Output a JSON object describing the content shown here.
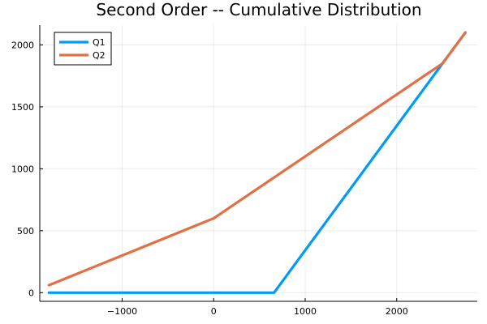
{
  "chart_data": {
    "type": "line",
    "title": "Second Order -- Cumulative Distribution",
    "xlabel": "",
    "ylabel": "",
    "xlim": [
      -1900,
      2880
    ],
    "ylim": [
      -70,
      2160
    ],
    "xticks": [
      -1000,
      0,
      1000,
      2000
    ],
    "xtick_labels": [
      "−1000",
      "0",
      "1000",
      "2000"
    ],
    "yticks": [
      0,
      500,
      1000,
      1500,
      2000
    ],
    "ytick_labels": [
      "0",
      "500",
      "1000",
      "1500",
      "2000"
    ],
    "grid": true,
    "legend_position": "top-left",
    "series": [
      {
        "name": "Q1",
        "color": "#009af9",
        "x": [
          -1800,
          0,
          660,
          2500,
          2750
        ],
        "y": [
          0,
          0,
          0,
          1850,
          2100
        ]
      },
      {
        "name": "Q2",
        "color": "#e26f46",
        "x": [
          -1800,
          0,
          2500,
          2750
        ],
        "y": [
          60,
          600,
          1850,
          2100
        ]
      }
    ]
  }
}
